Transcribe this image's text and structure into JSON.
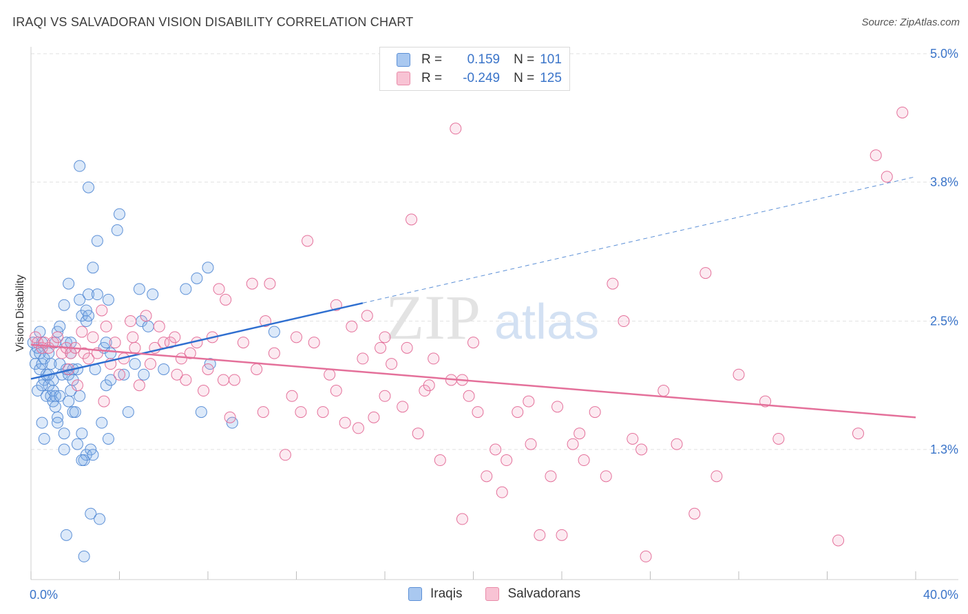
{
  "header": {
    "title": "IRAQI VS SALVADORAN VISION DISABILITY CORRELATION CHART",
    "source": "Source: ZipAtlas.com"
  },
  "watermark": {
    "zip": "ZIP",
    "atlas": "atlas"
  },
  "legend": {
    "r_label": "R =",
    "n_label": "N =",
    "rows": [
      {
        "r": "0.159",
        "n": "101",
        "swatch": "#a9c8f0",
        "border": "#5b8fd6"
      },
      {
        "r": "-0.249",
        "n": "125",
        "swatch": "#f8c3d4",
        "border": "#e98aa8"
      }
    ]
  },
  "bottom_legend": [
    {
      "label": "Iraqis",
      "color": "#a9c8f0"
    },
    {
      "label": "Salvadorans",
      "color": "#f8c3d4"
    }
  ],
  "chart_data": {
    "type": "scatter",
    "title": "IRAQI VS SALVADORAN VISION DISABILITY CORRELATION CHART",
    "xlabel": "",
    "ylabel": "Vision Disability",
    "xlim": [
      0,
      40
    ],
    "ylim": [
      0,
      5.2
    ],
    "x_tick_labels": [
      "0.0%",
      "40.0%"
    ],
    "y_ticks": [
      1.3,
      2.5,
      3.8,
      5.0
    ],
    "y_tick_labels": [
      "1.3%",
      "2.5%",
      "3.8%",
      "5.0%"
    ],
    "series": [
      {
        "name": "Iraqis",
        "color": "#5b8fd6",
        "fill": "rgba(130,175,235,0.28)",
        "trend": {
          "x0": 0,
          "y0": 1.96,
          "x_solid_end": 15,
          "x1": 40,
          "y1": 3.85
        },
        "points": [
          [
            0.1,
            2.3
          ],
          [
            0.2,
            2.2
          ],
          [
            0.2,
            2.1
          ],
          [
            0.3,
            2.25
          ],
          [
            0.3,
            1.85
          ],
          [
            0.4,
            2.2
          ],
          [
            0.4,
            2.05
          ],
          [
            0.5,
            2.3
          ],
          [
            0.5,
            2.1
          ],
          [
            0.5,
            1.55
          ],
          [
            0.6,
            1.95
          ],
          [
            0.6,
            2.15
          ],
          [
            0.7,
            1.8
          ],
          [
            0.7,
            2.0
          ],
          [
            0.8,
            2.2
          ],
          [
            0.8,
            1.9
          ],
          [
            0.9,
            1.8
          ],
          [
            0.9,
            2.1
          ],
          [
            1.0,
            1.85
          ],
          [
            1.0,
            1.75
          ],
          [
            1.0,
            1.95
          ],
          [
            1.1,
            1.8
          ],
          [
            1.1,
            2.3
          ],
          [
            1.2,
            1.6
          ],
          [
            1.2,
            1.55
          ],
          [
            1.2,
            2.4
          ],
          [
            1.3,
            2.45
          ],
          [
            1.3,
            1.8
          ],
          [
            1.4,
            2.0
          ],
          [
            1.5,
            2.65
          ],
          [
            1.5,
            1.45
          ],
          [
            1.5,
            1.3
          ],
          [
            1.6,
            2.3
          ],
          [
            1.6,
            2.05
          ],
          [
            1.7,
            2.85
          ],
          [
            1.7,
            2.0
          ],
          [
            1.7,
            1.75
          ],
          [
            1.8,
            1.85
          ],
          [
            1.8,
            2.2
          ],
          [
            1.9,
            1.65
          ],
          [
            1.9,
            1.95
          ],
          [
            1.9,
            2.05
          ],
          [
            2.0,
            1.65
          ],
          [
            2.1,
            1.35
          ],
          [
            2.1,
            2.05
          ],
          [
            2.2,
            2.7
          ],
          [
            2.2,
            3.95
          ],
          [
            2.2,
            1.8
          ],
          [
            2.3,
            1.45
          ],
          [
            2.3,
            2.55
          ],
          [
            2.4,
            1.2
          ],
          [
            2.5,
            2.5
          ],
          [
            2.5,
            2.6
          ],
          [
            2.5,
            1.25
          ],
          [
            2.6,
            2.75
          ],
          [
            2.6,
            3.75
          ],
          [
            2.7,
            1.3
          ],
          [
            2.7,
            0.7
          ],
          [
            2.8,
            3.0
          ],
          [
            2.8,
            1.25
          ],
          [
            2.9,
            2.05
          ],
          [
            3.0,
            2.75
          ],
          [
            3.0,
            3.25
          ],
          [
            3.2,
            1.55
          ],
          [
            3.3,
            2.25
          ],
          [
            3.4,
            2.3
          ],
          [
            3.4,
            1.9
          ],
          [
            3.5,
            2.7
          ],
          [
            3.5,
            1.4
          ],
          [
            3.6,
            1.95
          ],
          [
            3.9,
            3.35
          ],
          [
            4.0,
            3.5
          ],
          [
            4.2,
            2.0
          ],
          [
            4.4,
            1.65
          ],
          [
            4.7,
            2.1
          ],
          [
            4.9,
            2.8
          ],
          [
            5.0,
            2.5
          ],
          [
            5.1,
            2.0
          ],
          [
            5.3,
            2.45
          ],
          [
            5.5,
            2.75
          ],
          [
            6.0,
            2.05
          ],
          [
            7.0,
            2.8
          ],
          [
            7.5,
            2.9
          ],
          [
            8.0,
            3.0
          ],
          [
            8.1,
            2.1
          ],
          [
            1.6,
            0.5
          ],
          [
            2.4,
            0.3
          ],
          [
            3.1,
            0.65
          ],
          [
            2.3,
            1.2
          ],
          [
            0.5,
            1.9
          ],
          [
            7.7,
            1.65
          ],
          [
            9.1,
            1.55
          ],
          [
            11.0,
            2.4
          ],
          [
            1.8,
            2.3
          ],
          [
            3.6,
            2.2
          ],
          [
            2.6,
            2.55
          ],
          [
            1.3,
            2.1
          ],
          [
            0.8,
            2.0
          ],
          [
            1.1,
            1.7
          ],
          [
            0.4,
            2.4
          ],
          [
            0.6,
            1.4
          ]
        ]
      },
      {
        "name": "Salvadorans",
        "color": "#e4709a",
        "fill": "rgba(240,160,190,0.22)",
        "trend": {
          "x0": 0,
          "y0": 2.28,
          "x1": 40,
          "y1": 1.6
        },
        "points": [
          [
            0.2,
            2.35
          ],
          [
            0.3,
            2.3
          ],
          [
            0.5,
            2.25
          ],
          [
            0.8,
            2.25
          ],
          [
            1.0,
            2.3
          ],
          [
            1.2,
            2.35
          ],
          [
            1.4,
            2.2
          ],
          [
            1.6,
            2.25
          ],
          [
            1.8,
            2.2
          ],
          [
            2.0,
            2.25
          ],
          [
            2.3,
            2.4
          ],
          [
            2.4,
            2.2
          ],
          [
            2.6,
            2.15
          ],
          [
            2.8,
            2.35
          ],
          [
            3.0,
            2.2
          ],
          [
            3.2,
            2.6
          ],
          [
            3.4,
            2.45
          ],
          [
            3.6,
            2.1
          ],
          [
            3.8,
            2.3
          ],
          [
            4.0,
            2.0
          ],
          [
            4.2,
            2.15
          ],
          [
            4.5,
            2.5
          ],
          [
            4.7,
            2.25
          ],
          [
            4.9,
            1.9
          ],
          [
            5.2,
            2.55
          ],
          [
            5.4,
            2.1
          ],
          [
            5.6,
            2.25
          ],
          [
            5.8,
            2.45
          ],
          [
            6.0,
            2.3
          ],
          [
            6.3,
            2.3
          ],
          [
            6.5,
            2.35
          ],
          [
            6.8,
            2.15
          ],
          [
            7.0,
            1.95
          ],
          [
            7.2,
            2.2
          ],
          [
            7.5,
            2.3
          ],
          [
            7.8,
            1.85
          ],
          [
            8.0,
            2.05
          ],
          [
            8.2,
            2.35
          ],
          [
            8.5,
            2.8
          ],
          [
            8.8,
            2.7
          ],
          [
            9.2,
            1.95
          ],
          [
            9.6,
            2.3
          ],
          [
            10.0,
            2.85
          ],
          [
            10.2,
            2.05
          ],
          [
            10.6,
            2.5
          ],
          [
            10.8,
            2.85
          ],
          [
            11.0,
            2.2
          ],
          [
            11.5,
            1.25
          ],
          [
            12.0,
            2.35
          ],
          [
            12.5,
            3.25
          ],
          [
            12.8,
            2.3
          ],
          [
            13.2,
            1.65
          ],
          [
            13.5,
            2.0
          ],
          [
            13.8,
            2.65
          ],
          [
            14.2,
            1.55
          ],
          [
            14.5,
            2.45
          ],
          [
            15.0,
            2.15
          ],
          [
            15.2,
            2.55
          ],
          [
            15.5,
            1.6
          ],
          [
            16.0,
            2.35
          ],
          [
            16.3,
            2.1
          ],
          [
            16.8,
            1.7
          ],
          [
            17.2,
            3.45
          ],
          [
            17.5,
            1.45
          ],
          [
            17.8,
            1.85
          ],
          [
            18.2,
            2.15
          ],
          [
            18.5,
            1.2
          ],
          [
            19.0,
            1.95
          ],
          [
            19.2,
            4.3
          ],
          [
            19.5,
            0.65
          ],
          [
            19.8,
            1.8
          ],
          [
            20.2,
            1.65
          ],
          [
            20.6,
            1.05
          ],
          [
            21.0,
            1.3
          ],
          [
            21.3,
            0.9
          ],
          [
            22.0,
            1.65
          ],
          [
            22.6,
            1.35
          ],
          [
            23.0,
            0.5
          ],
          [
            23.5,
            1.05
          ],
          [
            23.8,
            1.7
          ],
          [
            24.0,
            0.5
          ],
          [
            24.5,
            1.35
          ],
          [
            25.0,
            1.2
          ],
          [
            25.5,
            1.65
          ],
          [
            26.0,
            1.05
          ],
          [
            26.3,
            2.85
          ],
          [
            26.8,
            2.5
          ],
          [
            27.2,
            1.4
          ],
          [
            27.6,
            1.3
          ],
          [
            27.8,
            0.3
          ],
          [
            28.6,
            1.85
          ],
          [
            29.2,
            1.35
          ],
          [
            30.0,
            0.7
          ],
          [
            30.5,
            2.95
          ],
          [
            31.0,
            1.05
          ],
          [
            32.0,
            2.0
          ],
          [
            33.2,
            1.75
          ],
          [
            33.8,
            1.4
          ],
          [
            36.5,
            0.45
          ],
          [
            37.4,
            1.45
          ],
          [
            38.2,
            4.05
          ],
          [
            38.7,
            3.85
          ],
          [
            39.4,
            4.45
          ],
          [
            11.8,
            1.8
          ],
          [
            14.8,
            1.5
          ],
          [
            9.0,
            1.6
          ],
          [
            20.0,
            2.3
          ],
          [
            18.0,
            1.9
          ],
          [
            21.5,
            1.2
          ],
          [
            16.0,
            1.8
          ],
          [
            12.2,
            1.65
          ],
          [
            10.5,
            1.65
          ],
          [
            13.8,
            1.85
          ],
          [
            6.6,
            2.0
          ],
          [
            8.7,
            1.95
          ],
          [
            4.6,
            2.35
          ],
          [
            3.3,
            1.75
          ],
          [
            0.6,
            2.3
          ],
          [
            1.7,
            2.05
          ],
          [
            2.1,
            1.9
          ],
          [
            15.8,
            2.25
          ],
          [
            17.0,
            2.25
          ],
          [
            19.5,
            1.95
          ],
          [
            22.5,
            1.75
          ],
          [
            24.8,
            1.45
          ]
        ]
      }
    ]
  }
}
